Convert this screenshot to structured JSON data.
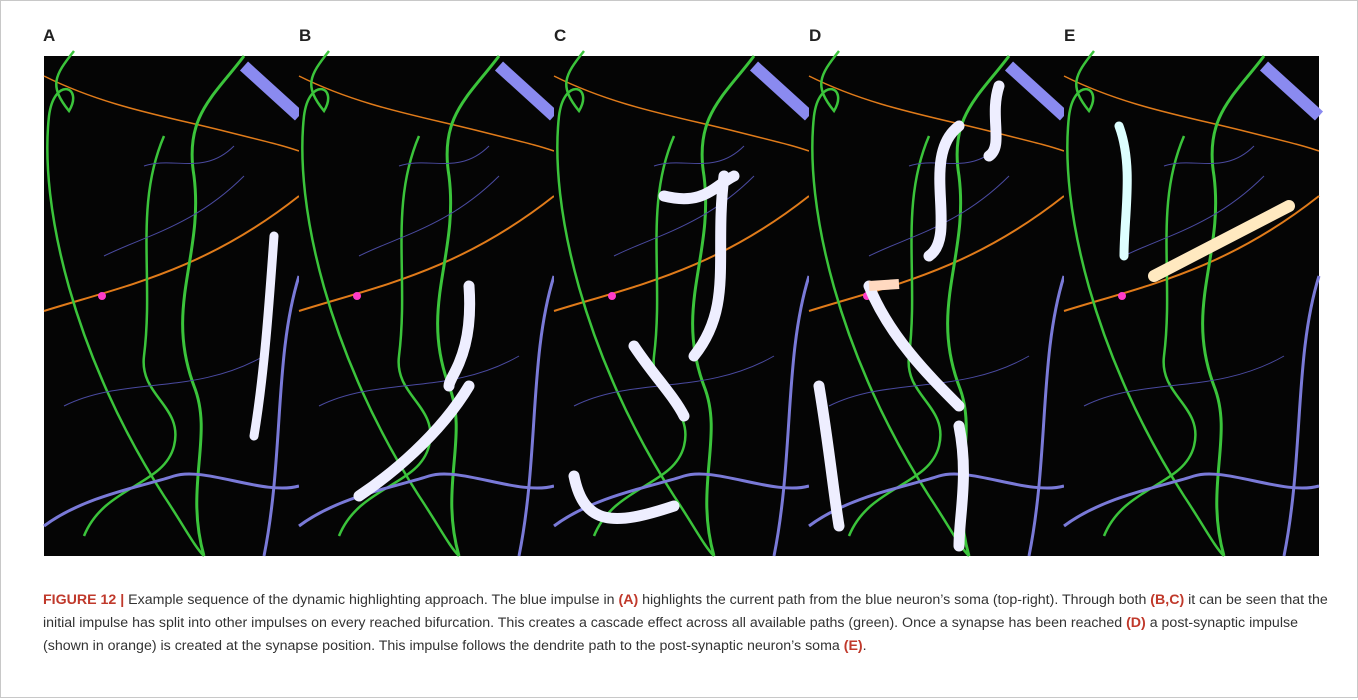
{
  "figure": {
    "panels": [
      "A",
      "B",
      "C",
      "D",
      "E"
    ],
    "caption": [
      {
        "text": "FIGURE 12 |",
        "bold": true
      },
      {
        "text": " Example sequence of the dynamic highlighting approach. The blue impulse in ",
        "bold": false
      },
      {
        "text": "(A)",
        "bold": true
      },
      {
        "text": " highlights the current path from the blue neuron’s soma (top-right). Through both ",
        "bold": false
      },
      {
        "text": "(B,C)",
        "bold": true
      },
      {
        "text": " it can be seen that the initial impulse has split into other impulses on every reached bifurcation. This creates a cascade effect across all available paths (green). Once a synapse has been reached ",
        "bold": false
      },
      {
        "text": "(D)",
        "bold": true
      },
      {
        "text": " a post-synaptic impulse (shown in orange) is created at the synapse position. This impulse follows the dendrite path to the post-synaptic neuron’s soma ",
        "bold": false
      },
      {
        "text": "(E)",
        "bold": true
      },
      {
        "text": ".",
        "bold": false
      }
    ]
  }
}
